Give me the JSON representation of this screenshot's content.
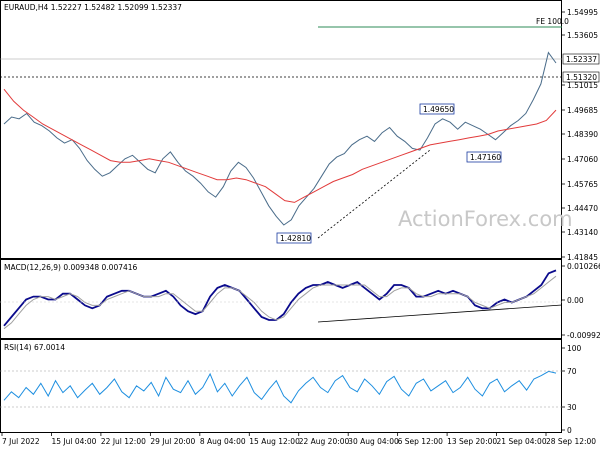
{
  "chart_data": [
    {
      "type": "line",
      "panel": "price",
      "title": "EURAUD,H4  1.52227 1.52482 1.52099 1.52337",
      "watermark": "ActionForex.com",
      "ylim": [
        1.4145,
        1.5523
      ],
      "y_ticks": [
        "1.54995",
        "1.53605",
        "1.51015",
        "1.49685",
        "1.48390",
        "1.47060",
        "1.45765",
        "1.44470",
        "1.43140",
        "1.41845"
      ],
      "current_price_label": "1.52337",
      "marked_level_label": "1.51320",
      "fe_label": "FE 100.0",
      "annotations": [
        "1.42810",
        "1.49650",
        "1.47160"
      ],
      "series": [
        {
          "name": "price",
          "color": "#4a6c8a",
          "values": [
            1.488,
            1.492,
            1.491,
            1.494,
            1.489,
            1.487,
            1.484,
            1.48,
            1.477,
            1.479,
            1.474,
            1.467,
            1.462,
            1.458,
            1.46,
            1.464,
            1.468,
            1.47,
            1.466,
            1.462,
            1.46,
            1.468,
            1.472,
            1.466,
            1.461,
            1.458,
            1.454,
            1.449,
            1.446,
            1.452,
            1.461,
            1.466,
            1.463,
            1.457,
            1.449,
            1.441,
            1.435,
            1.43,
            1.433,
            1.441,
            1.446,
            1.451,
            1.458,
            1.465,
            1.469,
            1.471,
            1.476,
            1.479,
            1.481,
            1.478,
            1.483,
            1.486,
            1.481,
            1.478,
            1.474,
            1.473,
            1.48,
            1.488,
            1.491,
            1.489,
            1.485,
            1.489,
            1.487,
            1.485,
            1.482,
            1.479,
            1.483,
            1.487,
            1.49,
            1.494,
            1.502,
            1.511,
            1.529,
            1.523
          ]
        },
        {
          "name": "moving average",
          "color": "#e23b3b",
          "values": [
            1.508,
            1.501,
            1.496,
            1.492,
            1.488,
            1.485,
            1.482,
            1.479,
            1.476,
            1.473,
            1.47,
            1.467,
            1.466,
            1.466,
            1.467,
            1.468,
            1.467,
            1.466,
            1.464,
            1.462,
            1.46,
            1.458,
            1.456,
            1.456,
            1.457,
            1.456,
            1.454,
            1.452,
            1.448,
            1.444,
            1.443,
            1.446,
            1.449,
            1.452,
            1.455,
            1.457,
            1.459,
            1.462,
            1.464,
            1.466,
            1.468,
            1.47,
            1.472,
            1.474,
            1.476,
            1.477,
            1.478,
            1.479,
            1.48,
            1.481,
            1.482,
            1.484,
            1.485,
            1.486,
            1.487,
            1.488,
            1.49,
            1.496
          ]
        }
      ]
    },
    {
      "type": "line",
      "panel": "macd",
      "title": "MACD(12,26,9) 0.009348 0.007416",
      "y_ticks": [
        "0.010266",
        "0.00",
        "-0.009929"
      ],
      "ylim": [
        -0.0125,
        0.0115
      ],
      "series": [
        {
          "name": "macd",
          "color": "#0a0a8c",
          "values": [
            -0.009,
            -0.006,
            -0.003,
            0.0,
            0.001,
            0.001,
            0.0,
            0.0,
            0.002,
            0.002,
            0.0,
            -0.002,
            -0.003,
            -0.002,
            0.001,
            0.002,
            0.003,
            0.003,
            0.002,
            0.001,
            0.001,
            0.002,
            0.003,
            0.001,
            -0.002,
            -0.004,
            -0.005,
            -0.004,
            0.001,
            0.004,
            0.005,
            0.004,
            0.003,
            0.0,
            -0.003,
            -0.006,
            -0.007,
            -0.007,
            -0.005,
            -0.001,
            0.002,
            0.004,
            0.005,
            0.005,
            0.006,
            0.005,
            0.004,
            0.005,
            0.006,
            0.004,
            0.002,
            0.0,
            0.002,
            0.005,
            0.005,
            0.004,
            0.001,
            0.001,
            0.002,
            0.003,
            0.002,
            0.003,
            0.002,
            0.001,
            -0.002,
            -0.003,
            -0.003,
            -0.001,
            0.0,
            -0.001,
            0.0,
            0.001,
            0.003,
            0.005,
            0.009,
            0.01
          ]
        },
        {
          "name": "signal",
          "color": "#a0a0a0",
          "values": [
            -0.01,
            -0.008,
            -0.005,
            -0.002,
            0.0,
            0.001,
            0.001,
            0.0,
            0.001,
            0.002,
            0.001,
            -0.001,
            -0.002,
            -0.002,
            0.0,
            0.001,
            0.002,
            0.003,
            0.002,
            0.001,
            0.001,
            0.001,
            0.002,
            0.002,
            0.0,
            -0.002,
            -0.004,
            -0.004,
            -0.001,
            0.002,
            0.004,
            0.004,
            0.003,
            0.001,
            -0.001,
            -0.004,
            -0.006,
            -0.007,
            -0.006,
            -0.003,
            0.0,
            0.002,
            0.004,
            0.005,
            0.005,
            0.005,
            0.005,
            0.005,
            0.005,
            0.005,
            0.003,
            0.001,
            0.001,
            0.003,
            0.004,
            0.004,
            0.002,
            0.001,
            0.001,
            0.002,
            0.002,
            0.002,
            0.002,
            0.001,
            -0.001,
            -0.002,
            -0.003,
            -0.002,
            -0.001,
            -0.001,
            0.0,
            0.001,
            0.002,
            0.004,
            0.006,
            0.008
          ]
        }
      ]
    },
    {
      "type": "line",
      "panel": "rsi",
      "title": "RSI(14) 67.0014",
      "y_ticks": [
        "100",
        "70",
        "30",
        "0"
      ],
      "ylim": [
        0,
        100
      ],
      "series": [
        {
          "name": "rsi",
          "color": "#1e8fe0",
          "values": [
            35,
            45,
            38,
            50,
            42,
            55,
            40,
            58,
            44,
            52,
            38,
            47,
            55,
            42,
            50,
            60,
            45,
            38,
            52,
            46,
            56,
            40,
            62,
            48,
            44,
            58,
            42,
            50,
            66,
            45,
            55,
            40,
            52,
            62,
            44,
            36,
            48,
            58,
            40,
            32,
            46,
            55,
            62,
            50,
            44,
            58,
            64,
            50,
            45,
            60,
            52,
            42,
            57,
            63,
            48,
            40,
            55,
            60,
            46,
            52,
            58,
            44,
            50,
            62,
            48,
            40,
            55,
            60,
            45,
            52,
            58,
            47,
            60,
            64,
            69,
            67
          ]
        }
      ]
    }
  ],
  "x_ticks": [
    "7 Jul 2022",
    "15 Jul 04:00",
    "22 Jul 12:00",
    "29 Jul 20:00",
    "8 Aug 04:00",
    "15 Aug 12:00",
    "22 Aug 20:00",
    "30 Aug 04:00",
    "6 Sep 12:00",
    "13 Sep 20:00",
    "21 Sep 04:00",
    "28 Sep 12:00"
  ]
}
